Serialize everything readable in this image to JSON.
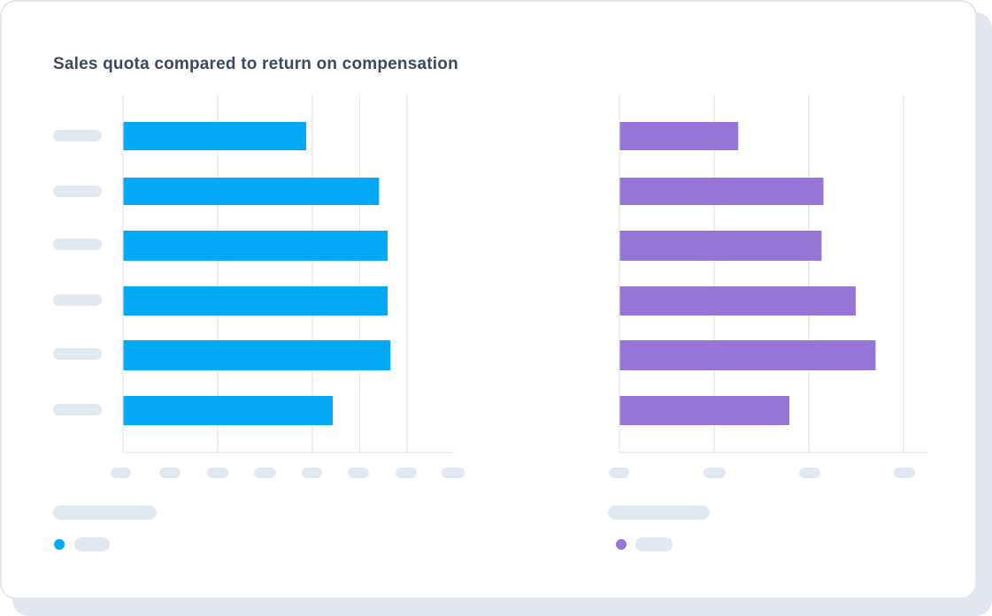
{
  "title": "Sales quota compared to return on compensation",
  "colors": {
    "left_series": "#03a9f4",
    "right_series": "#9575d5",
    "placeholder": "#e2e8f0",
    "grid": "#e2e8f0"
  },
  "chart_data": [
    {
      "type": "bar",
      "orientation": "horizontal",
      "title": "Sales quota compared to return on compensation",
      "categories": [
        "",
        "",
        "",
        "",
        "",
        ""
      ],
      "values": [
        1.93,
        2.7,
        2.79,
        2.79,
        2.82,
        2.21
      ],
      "xlim": [
        0,
        3.5
      ],
      "gridlines": [
        0,
        1,
        2,
        2.5,
        3
      ],
      "tick_count": 8,
      "grid": true,
      "legend": "bottom-left",
      "color": "#03a9f4"
    },
    {
      "type": "bar",
      "orientation": "horizontal",
      "categories": [
        "",
        "",
        "",
        "",
        "",
        ""
      ],
      "values": [
        1.25,
        2.15,
        2.13,
        2.49,
        2.7,
        1.79
      ],
      "xlim": [
        0,
        3.25
      ],
      "gridlines": [
        0,
        1,
        2,
        3
      ],
      "tick_count": 4,
      "grid": true,
      "legend": "bottom-left",
      "color": "#9575d5"
    }
  ]
}
